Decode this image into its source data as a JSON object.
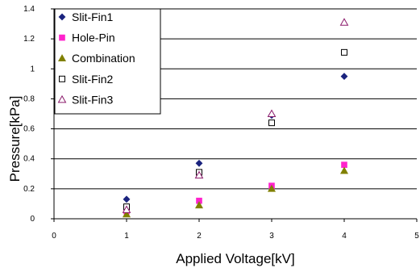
{
  "chart_data": {
    "type": "scatter",
    "title": "",
    "xlabel": "Applied Voltage[kV]",
    "ylabel": "Pressure[kPa]",
    "xlim": [
      0,
      5
    ],
    "ylim": [
      0,
      1.4
    ],
    "xticks": [
      "0",
      "1",
      "2",
      "3",
      "4",
      "5"
    ],
    "yticks": [
      "0",
      "0.2",
      "0.4",
      "0.6",
      "0.8",
      "1",
      "1.2",
      "1.4"
    ],
    "grid": "horizontal",
    "legend_position": "top-left",
    "series": [
      {
        "name": "Slit-Fin1",
        "marker": "diamond",
        "filled": true,
        "color": "#1a237e",
        "x": [
          1,
          2,
          3,
          4
        ],
        "y": [
          0.13,
          0.37,
          0.69,
          0.95
        ]
      },
      {
        "name": "Hole-Pin",
        "marker": "square",
        "filled": true,
        "color": "#ff22cc",
        "x": [
          1,
          2,
          3,
          4
        ],
        "y": [
          0.05,
          0.12,
          0.22,
          0.36
        ]
      },
      {
        "name": "Combination",
        "marker": "triangle",
        "filled": true,
        "color": "#808000",
        "x": [
          1,
          2,
          3,
          4
        ],
        "y": [
          0.03,
          0.09,
          0.2,
          0.32
        ]
      },
      {
        "name": "Slit-Fin2",
        "marker": "square",
        "filled": false,
        "color": "#000000",
        "x": [
          1,
          2,
          3,
          4
        ],
        "y": [
          0.08,
          0.31,
          0.64,
          1.11
        ]
      },
      {
        "name": "Slit-Fin3",
        "marker": "triangle",
        "filled": false,
        "color": "#8b1a6b",
        "x": [
          1,
          2,
          3,
          4
        ],
        "y": [
          0.06,
          0.29,
          0.7,
          1.31
        ]
      }
    ]
  }
}
